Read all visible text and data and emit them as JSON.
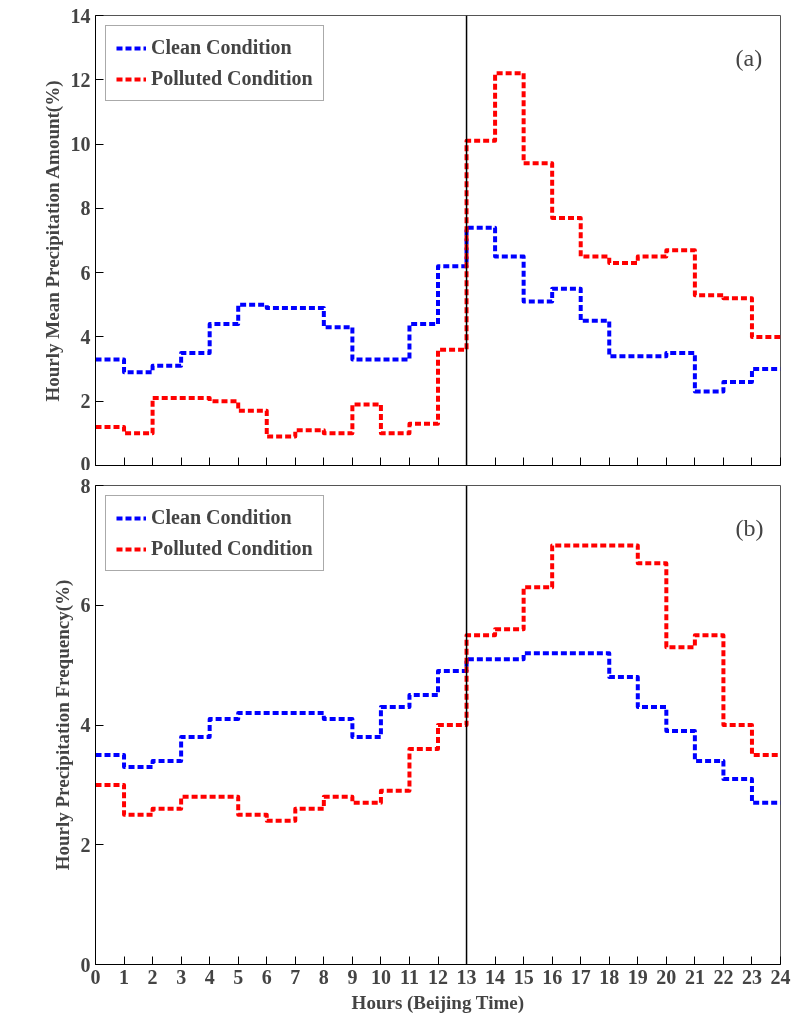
{
  "chart_data": [
    {
      "type": "step",
      "ylabel": "Hourly Mean Precipitation Amount(%)",
      "x": [
        0,
        1,
        2,
        3,
        4,
        5,
        6,
        7,
        8,
        9,
        10,
        11,
        12,
        13,
        14,
        15,
        16,
        17,
        18,
        19,
        20,
        21,
        22,
        23,
        24
      ],
      "xlim": [
        0,
        24
      ],
      "xticks": [
        0,
        1,
        2,
        3,
        4,
        5,
        6,
        7,
        8,
        9,
        10,
        11,
        12,
        13,
        14,
        15,
        16,
        17,
        18,
        19,
        20,
        21,
        22,
        23,
        24
      ],
      "ylim": [
        0,
        14
      ],
      "yticks": [
        0,
        2,
        4,
        6,
        8,
        10,
        12,
        14
      ],
      "tick_labels": "y",
      "grid": false,
      "legend": "top left",
      "line_style": "dashed",
      "series": [
        {
          "name": "Clean Condition",
          "color": "#0000ff",
          "values": [
            3.3,
            2.9,
            3.1,
            3.5,
            4.4,
            5.0,
            4.9,
            4.9,
            4.3,
            3.3,
            3.3,
            4.4,
            6.2,
            7.4,
            6.5,
            5.1,
            5.5,
            4.5,
            3.4,
            3.4,
            3.5,
            2.3,
            2.6,
            3.0,
            3.0
          ]
        },
        {
          "name": "Polluted Condition",
          "color": "#ff0000",
          "values": [
            1.2,
            1.0,
            2.1,
            2.1,
            2.0,
            1.7,
            0.9,
            1.1,
            1.0,
            1.9,
            1.0,
            1.3,
            3.6,
            10.1,
            12.2,
            9.4,
            7.7,
            6.5,
            6.3,
            6.5,
            6.7,
            5.3,
            5.2,
            4.0,
            4.0
          ]
        }
      ],
      "ref_lines": [
        {
          "axis": "x",
          "value": 13,
          "color": "#000000"
        }
      ],
      "annotations": [
        "(a)"
      ]
    },
    {
      "type": "step",
      "xlabel": "Hours (Beijing Time)",
      "ylabel": "Hourly Precipitation Frequency(%)",
      "x": [
        0,
        1,
        2,
        3,
        4,
        5,
        6,
        7,
        8,
        9,
        10,
        11,
        12,
        13,
        14,
        15,
        16,
        17,
        18,
        19,
        20,
        21,
        22,
        23,
        24
      ],
      "xlim": [
        0,
        24
      ],
      "xticks": [
        0,
        1,
        2,
        3,
        4,
        5,
        6,
        7,
        8,
        9,
        10,
        11,
        12,
        13,
        14,
        15,
        16,
        17,
        18,
        19,
        20,
        21,
        22,
        23,
        24
      ],
      "ylim": [
        0,
        8
      ],
      "yticks": [
        0,
        2,
        4,
        6,
        8
      ],
      "grid": false,
      "legend": "top left",
      "line_style": "dashed",
      "series": [
        {
          "name": "Clean Condition",
          "color": "#0000ff",
          "values": [
            3.5,
            3.3,
            3.4,
            3.8,
            4.1,
            4.2,
            4.2,
            4.2,
            4.1,
            3.8,
            4.3,
            4.5,
            4.9,
            5.1,
            5.1,
            5.2,
            5.2,
            5.2,
            4.8,
            4.3,
            3.9,
            3.4,
            3.1,
            2.7,
            2.7
          ]
        },
        {
          "name": "Polluted Condition",
          "color": "#ff0000",
          "values": [
            3.0,
            2.5,
            2.6,
            2.8,
            2.8,
            2.5,
            2.4,
            2.6,
            2.8,
            2.7,
            2.9,
            3.6,
            4.0,
            5.5,
            5.6,
            6.3,
            7.0,
            7.0,
            7.0,
            6.7,
            5.3,
            5.5,
            4.0,
            3.5,
            3.5
          ]
        }
      ],
      "ref_lines": [
        {
          "axis": "x",
          "value": 13,
          "color": "#000000"
        }
      ],
      "annotations": [
        "(b)"
      ]
    }
  ]
}
